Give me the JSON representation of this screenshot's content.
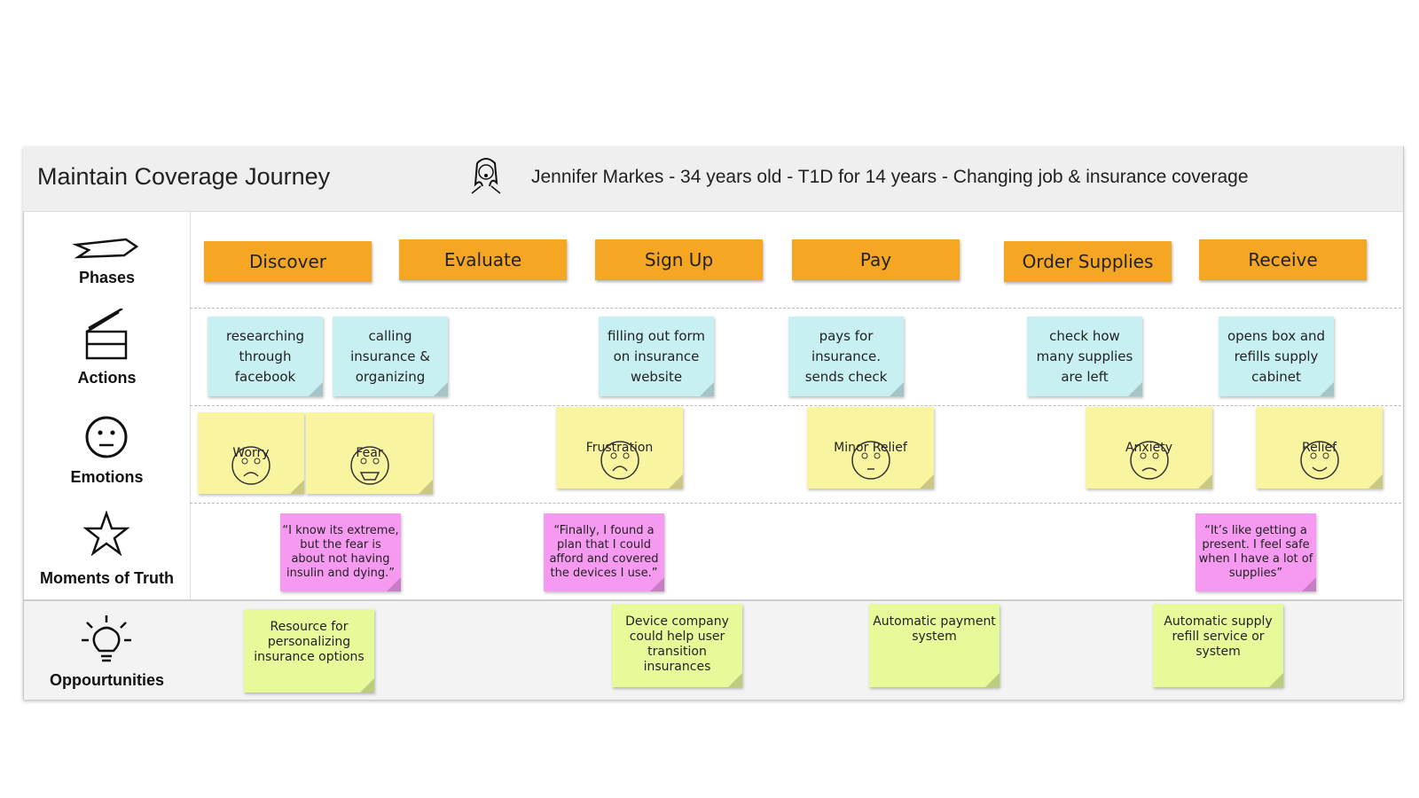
{
  "header": {
    "title": "Maintain Coverage Journey",
    "persona": "Jennifer Markes - 34 years old - T1D for 14 years - Changing job & insurance coverage"
  },
  "rows": [
    "Phases",
    "Actions",
    "Emotions",
    "Moments of Truth",
    "Oppourtunities"
  ],
  "phases": [
    "Discover",
    "Evaluate",
    "Sign Up",
    "Pay",
    "Order Supplies",
    "Receive"
  ],
  "actions": [
    "researching through facebook",
    "calling insurance & organizing",
    "filling out form on insurance website",
    "pays for insurance. sends check",
    "check how many supplies are left",
    "opens box and refills supply cabinet"
  ],
  "emotions": [
    "Worry",
    "Fear",
    "Frustration",
    "Minor Relief",
    "Anxiety",
    "Relief"
  ],
  "moments": [
    "“I know its extreme, but the fear is about not having insulin and dying.”",
    "“Finally, I found a plan that I could afford and covered the devices I use.”",
    "“It’s like getting a present. I feel safe when I have a lot of supplies”"
  ],
  "opportunities": [
    "Resource for personalizing insurance options",
    "Device company could help user transition insurances",
    "Automatic payment system",
    "Automatic supply refill service or system"
  ]
}
